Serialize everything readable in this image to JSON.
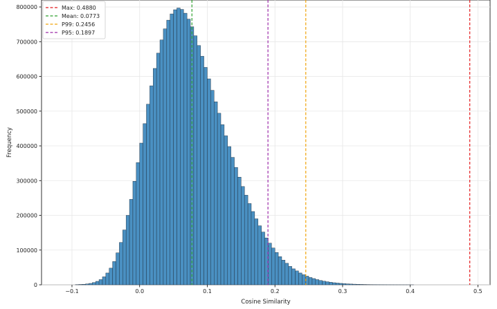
{
  "chart_data": {
    "type": "bar",
    "title": "",
    "xlabel": "Cosine Similarity",
    "ylabel": "Frequency",
    "xlim": [
      -0.145,
      0.518
    ],
    "ylim": [
      0,
      820000
    ],
    "grid": true,
    "legend_position": "top-left",
    "bar_color": "#4a90c2",
    "bar_edge_color": "#1f2f3f",
    "bin_width": 0.005,
    "bins": {
      "x": [
        -0.095,
        -0.09,
        -0.085,
        -0.08,
        -0.075,
        -0.07,
        -0.065,
        -0.06,
        -0.055,
        -0.05,
        -0.045,
        -0.04,
        -0.035,
        -0.03,
        -0.025,
        -0.02,
        -0.015,
        -0.01,
        -0.005,
        0.0,
        0.005,
        0.01,
        0.015,
        0.02,
        0.025,
        0.03,
        0.035,
        0.04,
        0.045,
        0.05,
        0.055,
        0.06,
        0.065,
        0.07,
        0.075,
        0.08,
        0.085,
        0.09,
        0.095,
        0.1,
        0.105,
        0.11,
        0.115,
        0.12,
        0.125,
        0.13,
        0.135,
        0.14,
        0.145,
        0.15,
        0.155,
        0.16,
        0.165,
        0.17,
        0.175,
        0.18,
        0.185,
        0.19,
        0.195,
        0.2,
        0.205,
        0.21,
        0.215,
        0.22,
        0.225,
        0.23,
        0.235,
        0.24,
        0.245,
        0.25,
        0.255,
        0.26,
        0.265,
        0.27,
        0.275,
        0.28,
        0.285,
        0.29,
        0.295,
        0.3,
        0.305,
        0.31,
        0.315,
        0.32,
        0.325,
        0.33,
        0.335,
        0.34,
        0.345,
        0.35,
        0.355,
        0.36,
        0.365,
        0.37,
        0.375,
        0.38,
        0.385,
        0.39,
        0.395,
        0.4
      ],
      "y": [
        500,
        1000,
        1500,
        2500,
        4000,
        6500,
        10000,
        15000,
        23000,
        34000,
        48000,
        67000,
        92000,
        122000,
        158000,
        200000,
        246000,
        298000,
        352000,
        408000,
        464000,
        520000,
        573000,
        623000,
        667000,
        705000,
        737000,
        762000,
        780000,
        792000,
        797000,
        793000,
        782000,
        765000,
        743000,
        717000,
        689000,
        658000,
        626000,
        593000,
        560000,
        527000,
        494000,
        461000,
        429000,
        398000,
        367000,
        338000,
        310000,
        283000,
        258000,
        234000,
        211000,
        190000,
        170000,
        152000,
        135000,
        120000,
        106000,
        93000,
        81000,
        71000,
        62000,
        53000,
        46000,
        40000,
        34000,
        29000,
        25000,
        21000,
        18000,
        15000,
        12500,
        10500,
        8800,
        7300,
        6000,
        5000,
        4100,
        3300,
        2700,
        2200,
        1800,
        1450,
        1150,
        900,
        700,
        550,
        430,
        330,
        250,
        190,
        140,
        100,
        70,
        50,
        35,
        25,
        15,
        10
      ]
    },
    "xticks": [
      {
        "value": -0.1,
        "label": "−0.1"
      },
      {
        "value": 0.0,
        "label": "0.0"
      },
      {
        "value": 0.1,
        "label": "0.1"
      },
      {
        "value": 0.2,
        "label": "0.2"
      },
      {
        "value": 0.3,
        "label": "0.3"
      },
      {
        "value": 0.4,
        "label": "0.4"
      },
      {
        "value": 0.5,
        "label": "0.5"
      }
    ],
    "yticks": [
      {
        "value": 0,
        "label": "0"
      },
      {
        "value": 100000,
        "label": "100000"
      },
      {
        "value": 200000,
        "label": "200000"
      },
      {
        "value": 300000,
        "label": "300000"
      },
      {
        "value": 400000,
        "label": "400000"
      },
      {
        "value": 500000,
        "label": "500000"
      },
      {
        "value": 600000,
        "label": "600000"
      },
      {
        "value": 700000,
        "label": "700000"
      },
      {
        "value": 800000,
        "label": "800000"
      }
    ],
    "reference_lines": [
      {
        "name": "max",
        "x": 0.488,
        "color": "#e31a1c",
        "label": "Max: 0.4880"
      },
      {
        "name": "mean",
        "x": 0.0773,
        "color": "#2ca02c",
        "label": "Mean: 0.0773"
      },
      {
        "name": "p99",
        "x": 0.2456,
        "color": "#f0a30a",
        "label": "P99: 0.2456"
      },
      {
        "name": "p95",
        "x": 0.1897,
        "color": "#9c2aa8",
        "label": "P95: 0.1897"
      }
    ]
  }
}
